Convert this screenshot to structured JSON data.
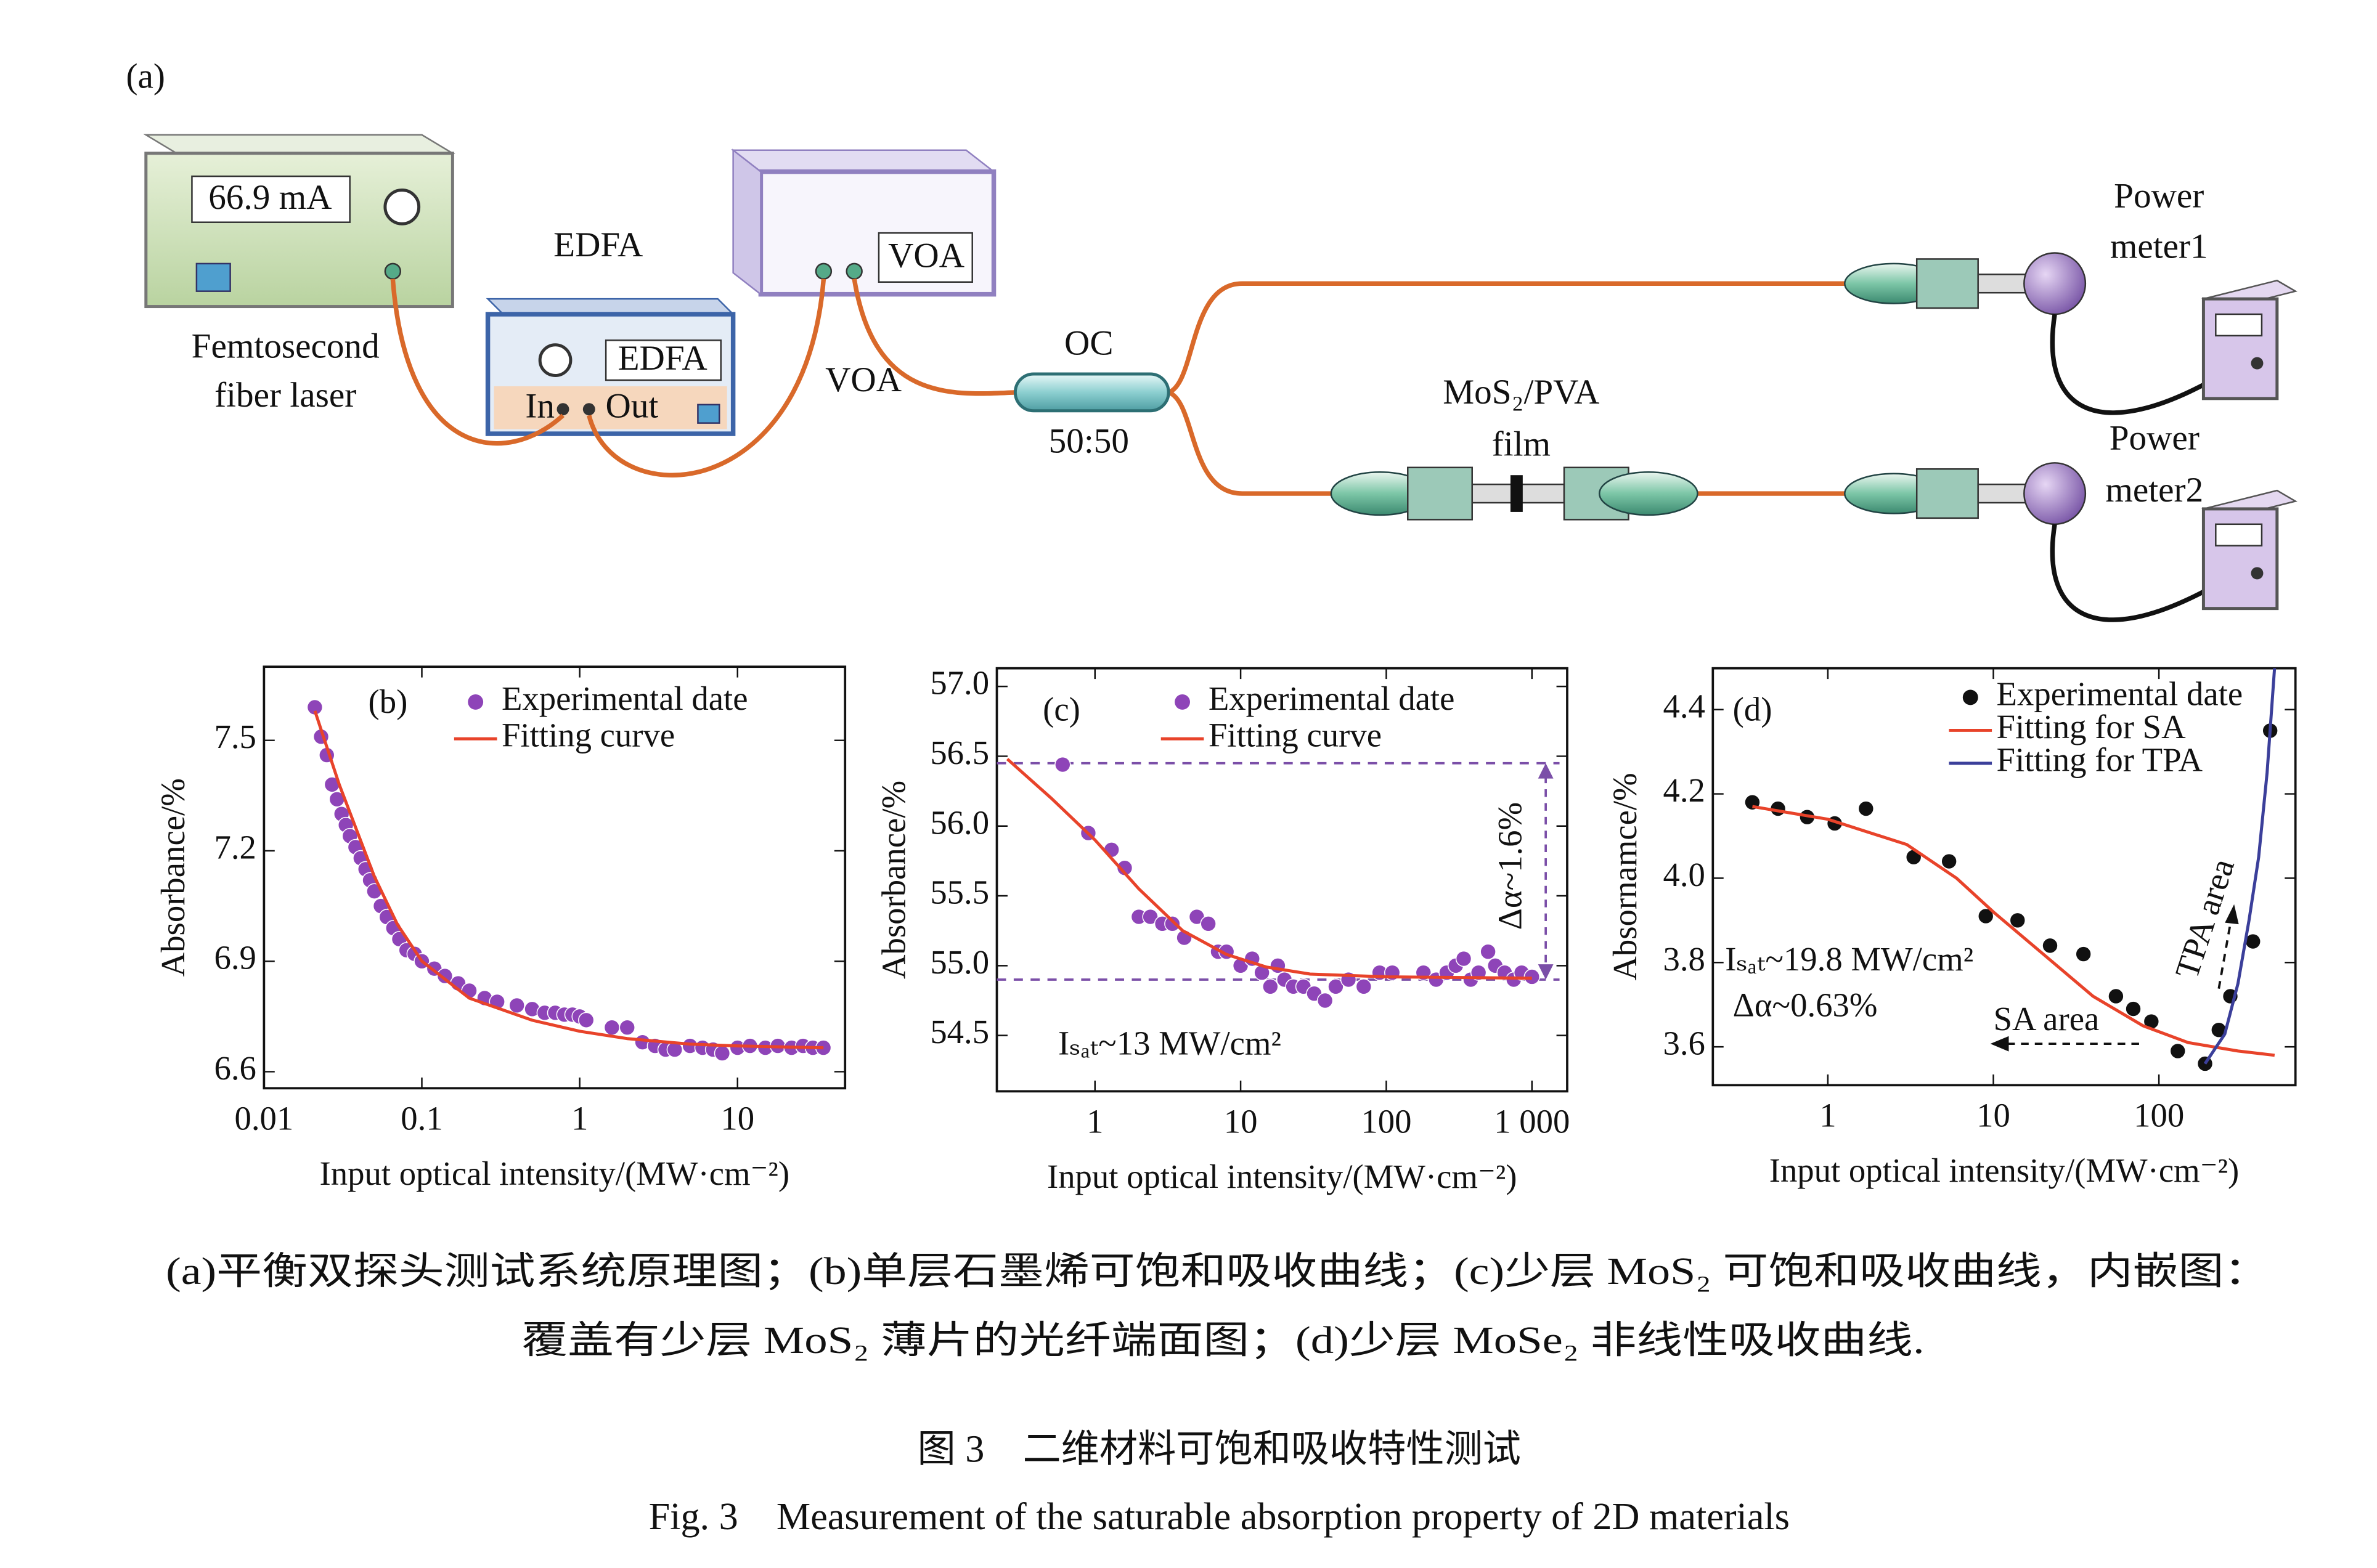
{
  "diagram": {
    "panel_label": "(a)",
    "laser": {
      "display": "66.9 mA",
      "label": [
        "Femtosecond",
        "fiber laser"
      ]
    },
    "edfa": {
      "label": "EDFA",
      "display": "EDFA",
      "port_in": "In",
      "port_out": "Out"
    },
    "voa": {
      "display": "VOA",
      "label": "VOA"
    },
    "coupler": {
      "label": "OC",
      "ratio": "50:50"
    },
    "sample": {
      "label": [
        "MoS₂/PVA",
        "film"
      ]
    },
    "meter1": {
      "label": [
        "Power",
        "meter1"
      ]
    },
    "meter2": {
      "label": [
        "Power",
        "meter2"
      ]
    }
  },
  "chart_data": [
    {
      "type": "scatter",
      "xscale": "log",
      "xlabel": "Input optical intensity/(MW·cm⁻²)",
      "ylabel": "Absorbance/%",
      "xlim": [
        0.01,
        48
      ],
      "ylim": [
        6.555,
        7.7
      ],
      "xticks": [
        0.01,
        0.1,
        1,
        10
      ],
      "yticks": [
        6.6,
        6.9,
        7.2,
        7.5
      ],
      "annotations": [
        "(b)"
      ],
      "series": [
        {
          "name": "Experimental date",
          "mode": "markers",
          "color": "#8e44b8",
          "x": [
            0.021,
            0.023,
            0.025,
            0.027,
            0.029,
            0.031,
            0.033,
            0.035,
            0.038,
            0.041,
            0.044,
            0.047,
            0.05,
            0.055,
            0.06,
            0.066,
            0.072,
            0.08,
            0.09,
            0.1,
            0.12,
            0.14,
            0.17,
            0.2,
            0.25,
            0.3,
            0.4,
            0.5,
            0.6,
            0.7,
            0.8,
            0.9,
            1.0,
            1.1,
            1.6,
            2.0,
            2.5,
            3,
            3.5,
            4,
            5,
            6,
            7,
            8,
            10,
            12,
            15,
            18,
            22,
            26,
            30,
            35
          ],
          "y": [
            7.59,
            7.51,
            7.46,
            7.38,
            7.34,
            7.3,
            7.27,
            7.24,
            7.21,
            7.18,
            7.15,
            7.12,
            7.09,
            7.05,
            7.02,
            6.99,
            6.96,
            6.93,
            6.92,
            6.9,
            6.88,
            6.86,
            6.84,
            6.82,
            6.8,
            6.79,
            6.78,
            6.77,
            6.76,
            6.76,
            6.755,
            6.755,
            6.75,
            6.74,
            6.72,
            6.72,
            6.68,
            6.67,
            6.66,
            6.66,
            6.67,
            6.665,
            6.66,
            6.65,
            6.665,
            6.67,
            6.665,
            6.67,
            6.665,
            6.67,
            6.665,
            6.665
          ]
        },
        {
          "name": "Fitting curve",
          "mode": "line",
          "color": "#e8432a",
          "x": [
            0.021,
            0.03,
            0.05,
            0.07,
            0.1,
            0.2,
            0.5,
            1,
            2,
            5,
            10,
            35
          ],
          "y": [
            7.58,
            7.38,
            7.13,
            7.0,
            6.9,
            6.8,
            6.74,
            6.71,
            6.69,
            6.675,
            6.67,
            6.665
          ]
        }
      ]
    },
    {
      "type": "scatter",
      "xscale": "log",
      "xlabel": "Input optical intensity/(MW·cm⁻²)",
      "ylabel": "Absorbance/%",
      "xlim": [
        0.212,
        1746
      ],
      "ylim": [
        54.1,
        57.13
      ],
      "xticks": [
        1,
        10,
        100,
        {
          "value": 1000,
          "label": "1 000"
        }
      ],
      "yticks": [
        54.5,
        {
          "value": 55,
          "label": "55.0"
        },
        55.5,
        {
          "value": 56,
          "label": "56.0"
        },
        56.5,
        {
          "value": 57,
          "label": "57.0"
        }
      ],
      "hlines": [
        56.45,
        54.9
      ],
      "annotations": [
        "(c)",
        "Δα~1.6%",
        "Iₛₐₜ~13 MW/cm²"
      ],
      "series": [
        {
          "name": "Experimental date",
          "mode": "markers",
          "color": "#8e44b8",
          "x": [
            0.6,
            0.9,
            1.3,
            1.6,
            2.0,
            2.4,
            2.9,
            3.4,
            4.1,
            5,
            6,
            7,
            8,
            10,
            12,
            14,
            16,
            18,
            20,
            23,
            27,
            32,
            38,
            45,
            55,
            70,
            90,
            110,
            180,
            220,
            260,
            300,
            340,
            380,
            430,
            500,
            560,
            650,
            750,
            850,
            1000
          ],
          "y": [
            56.44,
            55.95,
            55.83,
            55.7,
            55.35,
            55.35,
            55.3,
            55.3,
            55.2,
            55.35,
            55.3,
            55.1,
            55.1,
            55.0,
            55.05,
            54.95,
            54.85,
            55.0,
            54.9,
            54.85,
            54.85,
            54.8,
            54.75,
            54.85,
            54.9,
            54.85,
            54.95,
            54.95,
            54.95,
            54.9,
            54.95,
            55.0,
            55.05,
            54.9,
            54.95,
            55.1,
            55.0,
            54.95,
            54.9,
            54.95,
            54.92
          ]
        },
        {
          "name": "Fitting curve",
          "mode": "line",
          "color": "#e8432a",
          "x": [
            0.25,
            0.5,
            1,
            2,
            4,
            8,
            15,
            30,
            100,
            1000
          ],
          "y": [
            56.48,
            56.2,
            55.9,
            55.55,
            55.25,
            55.08,
            54.99,
            54.94,
            54.92,
            54.91
          ]
        }
      ]
    },
    {
      "type": "scatter",
      "xscale": "log",
      "xlabel": "Input optical intensity/(MW·cm⁻²)",
      "ylabel": "Absornamce/%",
      "xlim": [
        0.202,
        668
      ],
      "ylim": [
        3.509,
        4.498
      ],
      "xticks": [
        1,
        10,
        100
      ],
      "yticks": [
        3.6,
        3.8,
        {
          "value": 4,
          "label": "4.0"
        },
        4.2,
        4.4
      ],
      "annotations": [
        "(d)",
        "Iₛₐₜ~19.8 MW/cm²",
        "Δα~0.63%",
        "SA area",
        "TPA area"
      ],
      "series": [
        {
          "name": "Experimental date",
          "mode": "markers",
          "color": "#111111",
          "x": [
            0.35,
            0.5,
            0.75,
            1.1,
            1.7,
            3.3,
            5.4,
            9,
            14,
            22,
            35,
            55,
            70,
            90,
            130,
            190,
            230,
            270,
            370,
            470
          ],
          "y": [
            4.18,
            4.165,
            4.145,
            4.13,
            4.165,
            4.05,
            4.04,
            3.91,
            3.9,
            3.84,
            3.82,
            3.72,
            3.69,
            3.66,
            3.59,
            3.56,
            3.64,
            3.72,
            3.85,
            4.35
          ]
        },
        {
          "name": "Fitting for SA",
          "mode": "line",
          "color": "#e8432a",
          "x": [
            0.35,
            1,
            3,
            6,
            10,
            20,
            40,
            80,
            150,
            300,
            500
          ],
          "y": [
            4.17,
            4.14,
            4.08,
            4.0,
            3.92,
            3.82,
            3.72,
            3.65,
            3.61,
            3.59,
            3.58
          ]
        },
        {
          "name": "Fitting for TPA",
          "mode": "line",
          "color": "#3b3f9a",
          "x": [
            190,
            250,
            300,
            350,
            400,
            450,
            500
          ],
          "y": [
            3.56,
            3.63,
            3.75,
            3.9,
            4.05,
            4.25,
            4.5
          ]
        }
      ]
    }
  ],
  "caption": {
    "lines": [
      "(a)平衡双探头测试系统原理图；(b)单层石墨烯可饱和吸收曲线；(c)少层 MoS₂ 可饱和吸收曲线，内嵌图：",
      "覆盖有少层 MoS₂ 薄片的光纤端面图；(d)少层 MoSe₂ 非线性吸收曲线."
    ],
    "title_cn": "图 3　二维材料可饱和吸收特性测试",
    "title_en": "Fig. 3　Measurement of the saturable absorption property of 2D materials"
  }
}
